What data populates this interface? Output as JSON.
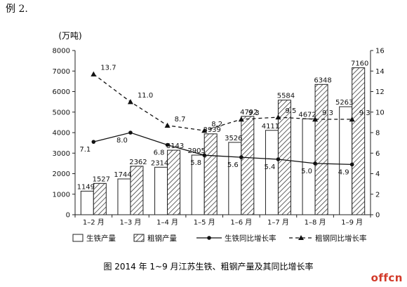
{
  "example_label": "例 2.",
  "watermark": "offcn",
  "chart_data": {
    "type": "bar",
    "title": "图 2014 年 1~9 月江苏生铁、粗钢产量及其同比增长率",
    "unit_label": "(万吨)",
    "categories": [
      "1–2 月",
      "1–3 月",
      "1–4 月",
      "1–5 月",
      "1–6 月",
      "1–7 月",
      "1–8 月",
      "1–9 月"
    ],
    "left_axis": {
      "ylim": [
        0,
        8000
      ],
      "ticks": [
        0,
        1000,
        2000,
        3000,
        4000,
        5000,
        6000,
        7000,
        8000
      ]
    },
    "right_axis": {
      "ylim": [
        0,
        16
      ],
      "ticks": [
        0,
        2,
        4,
        6,
        8,
        10,
        12,
        14,
        16
      ]
    },
    "series": [
      {
        "name": "生铁产量",
        "kind": "bar",
        "style": "white",
        "axis": "left",
        "values": [
          1149,
          1744,
          2314,
          2905,
          3526,
          4111,
          4672,
          5263
        ]
      },
      {
        "name": "粗钢产量",
        "kind": "bar",
        "style": "hatched",
        "axis": "left",
        "values": [
          1527,
          2362,
          3143,
          3939,
          4792,
          5584,
          6348,
          7160
        ]
      },
      {
        "name": "生铁同比增长率",
        "kind": "line",
        "style": "solid-dot",
        "axis": "right",
        "values": [
          7.1,
          8.0,
          6.8,
          5.8,
          5.6,
          5.4,
          5.0,
          4.9
        ]
      },
      {
        "name": "粗钢同比增长率",
        "kind": "line",
        "style": "dashed-triangle",
        "axis": "right",
        "values": [
          13.7,
          11.0,
          8.7,
          8.2,
          9.3,
          9.5,
          9.3,
          9.3
        ]
      }
    ],
    "legend_position": "bottom",
    "grid": false
  }
}
